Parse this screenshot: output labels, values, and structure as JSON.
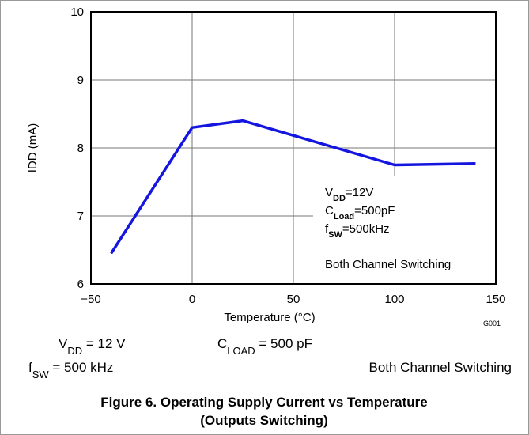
{
  "chart_data": {
    "type": "line",
    "x": [
      -40,
      0,
      25,
      100,
      140
    ],
    "series": [
      {
        "color": "#1515e0",
        "values": [
          6.45,
          8.3,
          8.4,
          7.75,
          7.77
        ]
      }
    ],
    "xlim": [
      -50,
      150
    ],
    "xticks": [
      {
        "value": -50,
        "label": "−50"
      },
      0,
      50,
      100,
      150
    ],
    "ylim": [
      6,
      10
    ],
    "yticks": [
      6,
      7,
      8,
      9,
      10
    ],
    "grid": true,
    "xlabel": "Temperature (°C)",
    "ylabel": "IDD (mA)",
    "annotations": [
      {
        "base": "V",
        "sub": "DD",
        "rest": "=12V"
      },
      {
        "base": "C",
        "sub": "Load",
        "rest": "=500pF"
      },
      {
        "base": "f",
        "sub": "SW",
        "rest": "=500kHz"
      },
      {
        "base": "Both Channel Switching"
      }
    ],
    "graph_id": "G001",
    "conditions": [
      {
        "base": "V",
        "sub": "DD",
        "rest": " = 12 V"
      },
      {
        "base": "C",
        "sub": "LOAD",
        "rest": " = 500 pF"
      },
      {
        "base": "f",
        "sub": "SW",
        "rest": " = 500 kHz"
      },
      {
        "base": "Both Channel Switching"
      }
    ],
    "caption": [
      "Figure 6. Operating Supply Current vs Temperature",
      "(Outputs Switching)"
    ]
  }
}
